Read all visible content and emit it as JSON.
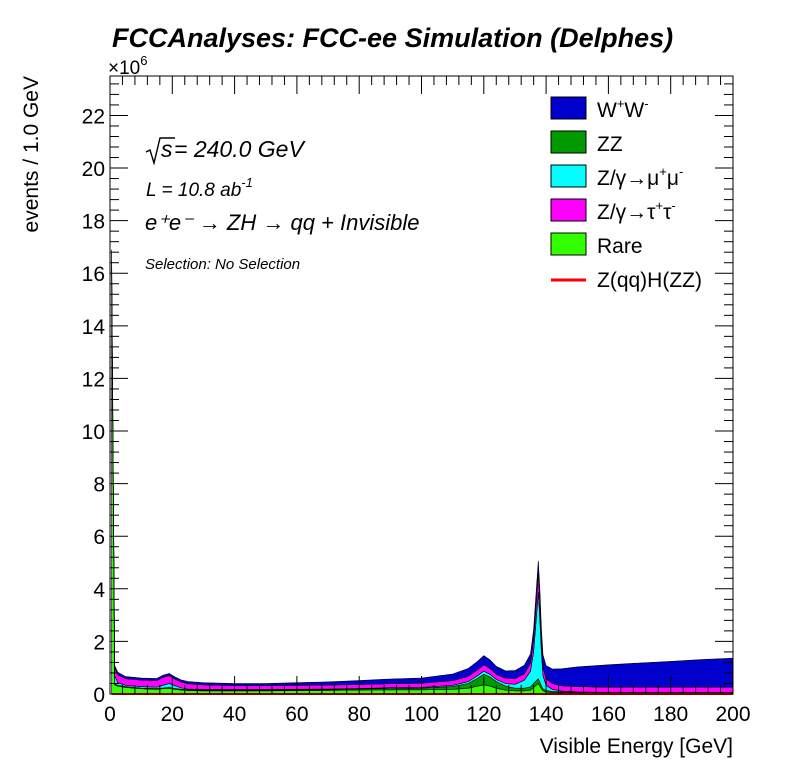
{
  "chart_data": {
    "type": "area",
    "title": "FCCAnalyses: FCC-ee Simulation (Delphes)",
    "xlabel": "Visible Energy [GeV]",
    "ylabel": "events / 1.0 GeV",
    "y_multiplier_label": "×10",
    "y_multiplier_exp": "6",
    "xlim": [
      0,
      200
    ],
    "ylim": [
      0,
      23.5
    ],
    "x_ticks": [
      0,
      20,
      40,
      60,
      80,
      100,
      120,
      140,
      160,
      180,
      200
    ],
    "y_ticks": [
      0,
      2,
      4,
      6,
      8,
      10,
      12,
      14,
      16,
      18,
      20,
      22
    ],
    "annotations": {
      "sqrt_s": "s",
      "energy": " = 240.0 GeV",
      "lumi_prefix": "L = 10.8 ab",
      "lumi_exp": "-1",
      "process": "e⁺e⁻ → ZH → qq + Invisible",
      "selection": "Selection: No Selection"
    },
    "x": [
      0.5,
      1.5,
      2.5,
      5,
      10,
      15,
      17,
      19,
      21,
      23,
      25,
      30,
      40,
      50,
      60,
      70,
      80,
      90,
      100,
      110,
      115,
      118,
      120,
      122,
      124,
      127,
      130,
      133,
      135,
      136,
      137,
      137.5,
      138,
      138.5,
      139,
      140,
      142,
      145,
      150,
      160,
      170,
      180,
      190,
      200
    ],
    "series": [
      {
        "name": "Rare",
        "color": "#33ff00",
        "values": [
          16.2,
          0.35,
          0.3,
          0.25,
          0.2,
          0.18,
          0.2,
          0.22,
          0.18,
          0.15,
          0.13,
          0.12,
          0.12,
          0.12,
          0.13,
          0.14,
          0.15,
          0.16,
          0.16,
          0.18,
          0.22,
          0.3,
          0.35,
          0.3,
          0.22,
          0.15,
          0.12,
          0.12,
          0.15,
          0.25,
          0.35,
          0.4,
          0.3,
          0.2,
          0.12,
          0.08,
          0.06,
          0.05,
          0.04,
          0.03,
          0.03,
          0.03,
          0.03,
          0.03
        ]
      },
      {
        "name": "ZZ",
        "color": "#009900",
        "values": [
          0.05,
          0.03,
          0.03,
          0.03,
          0.03,
          0.03,
          0.03,
          0.03,
          0.03,
          0.03,
          0.03,
          0.03,
          0.03,
          0.03,
          0.03,
          0.03,
          0.04,
          0.05,
          0.06,
          0.1,
          0.18,
          0.3,
          0.4,
          0.35,
          0.25,
          0.15,
          0.1,
          0.1,
          0.12,
          0.15,
          0.18,
          0.18,
          0.15,
          0.1,
          0.08,
          0.05,
          0.04,
          0.03,
          0.02,
          0.02,
          0.02,
          0.02,
          0.02,
          0.02
        ]
      },
      {
        "name": "Z/γ→μ⁺μ⁻",
        "color": "#00ffff",
        "values": [
          0.2,
          0.3,
          0.1,
          0.05,
          0.05,
          0.05,
          0.1,
          0.15,
          0.1,
          0.05,
          0.03,
          0.02,
          0.02,
          0.02,
          0.02,
          0.02,
          0.02,
          0.03,
          0.03,
          0.05,
          0.07,
          0.1,
          0.12,
          0.1,
          0.08,
          0.1,
          0.15,
          0.3,
          0.6,
          1.2,
          2.6,
          3.3,
          2.4,
          1.3,
          0.5,
          0.2,
          0.08,
          0.03,
          0.02,
          0.01,
          0.01,
          0.01,
          0.01,
          0.01
        ]
      },
      {
        "name": "Z/γ→τ⁺τ⁻",
        "color": "#ff00ff",
        "values": [
          0.3,
          0.3,
          0.3,
          0.25,
          0.25,
          0.25,
          0.3,
          0.3,
          0.25,
          0.22,
          0.2,
          0.18,
          0.15,
          0.15,
          0.15,
          0.15,
          0.15,
          0.15,
          0.16,
          0.18,
          0.2,
          0.22,
          0.24,
          0.22,
          0.2,
          0.2,
          0.22,
          0.25,
          0.3,
          0.45,
          0.65,
          0.7,
          0.6,
          0.4,
          0.3,
          0.25,
          0.22,
          0.2,
          0.2,
          0.2,
          0.2,
          0.2,
          0.2,
          0.2
        ]
      },
      {
        "name": "W⁺W⁻",
        "color": "#0000cc",
        "values": [
          0.15,
          0.1,
          0.1,
          0.08,
          0.08,
          0.08,
          0.08,
          0.08,
          0.08,
          0.08,
          0.08,
          0.08,
          0.08,
          0.08,
          0.1,
          0.12,
          0.15,
          0.18,
          0.2,
          0.25,
          0.3,
          0.32,
          0.35,
          0.33,
          0.3,
          0.28,
          0.3,
          0.32,
          0.35,
          0.4,
          0.45,
          0.48,
          0.48,
          0.48,
          0.48,
          0.5,
          0.55,
          0.65,
          0.75,
          0.85,
          0.92,
          0.98,
          1.05,
          1.1
        ]
      },
      {
        "name": "Z(qq)H(ZZ)",
        "color": "#ff0000",
        "values": [
          0,
          0,
          0,
          0,
          0,
          0,
          0,
          0,
          0,
          0,
          0,
          0,
          0,
          0,
          0,
          0,
          0,
          0,
          0,
          0,
          0,
          0,
          0,
          0,
          0,
          0,
          0,
          0,
          0,
          0,
          0,
          0,
          0,
          0,
          0,
          0,
          0,
          0,
          0,
          0,
          0,
          0,
          0,
          0
        ]
      }
    ],
    "legend": [
      {
        "label": "W",
        "sup1": "+",
        "label2": "W",
        "sup2": "-",
        "color": "#0000cc",
        "style": "box"
      },
      {
        "label": "ZZ",
        "color": "#009900",
        "style": "box"
      },
      {
        "label": "Z/γ→μ",
        "sup1": "+",
        "label2": "μ",
        "sup2": "-",
        "color": "#00ffff",
        "style": "box"
      },
      {
        "label": "Z/γ→τ",
        "sup1": "+",
        "label2": "τ",
        "sup2": "-",
        "color": "#ff00ff",
        "style": "box"
      },
      {
        "label": "Rare",
        "color": "#33ff00",
        "style": "box"
      },
      {
        "label": "Z(qq)H(ZZ)",
        "color": "#ff0000",
        "style": "line"
      }
    ],
    "legend_position": "top-right",
    "grid": false
  }
}
